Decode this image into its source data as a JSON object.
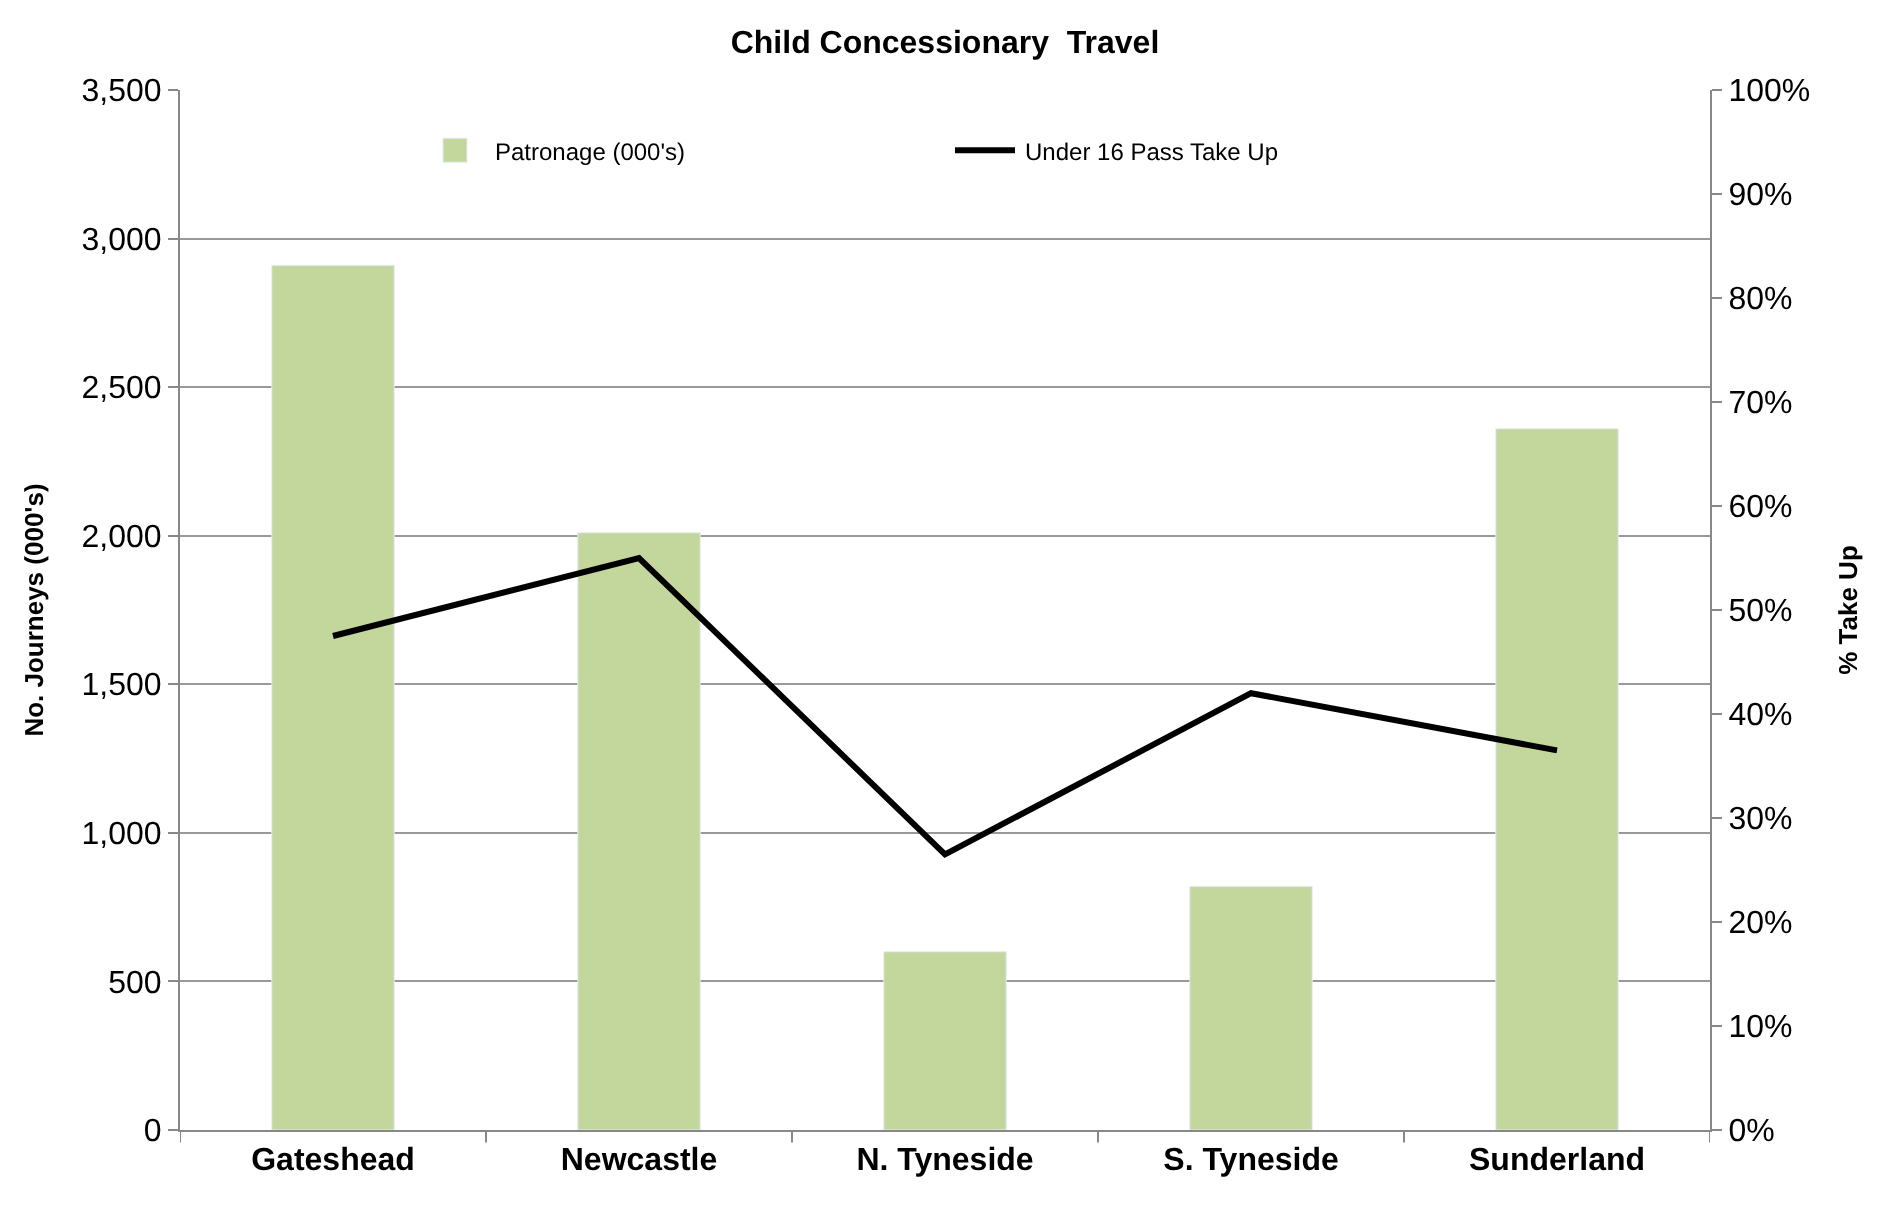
{
  "chart_data": {
    "type": "bar",
    "title": "Child Concessionary  Travel",
    "ylabel": "No. Journeys (000's)",
    "y2label": "% Take Up",
    "categories": [
      "Gateshead",
      "Newcastle",
      "N. Tyneside",
      "S. Tyneside",
      "Sunderland"
    ],
    "series": [
      {
        "name": "Patronage (000's)",
        "color": "#c3d69b",
        "values": [
          2910,
          2010,
          600,
          820,
          2360
        ]
      },
      {
        "name": "Under 16 Pass Take Up",
        "type": "line",
        "axis": "y2",
        "color": "#000000",
        "values": [
          47.5,
          55,
          26.5,
          42,
          36.5
        ]
      }
    ],
    "ylim": [
      0,
      3500
    ],
    "yticks": [
      {
        "value": 0,
        "label": "0"
      },
      {
        "value": 500,
        "label": "500"
      },
      {
        "value": 1000,
        "label": "1,000"
      },
      {
        "value": 1500,
        "label": "1,500"
      },
      {
        "value": 2000,
        "label": "2,000"
      },
      {
        "value": 2500,
        "label": "2,500"
      },
      {
        "value": 3000,
        "label": "3,000"
      },
      {
        "value": 3500,
        "label": "3,500"
      }
    ],
    "y2lim": [
      0,
      100
    ],
    "y2ticks": [
      {
        "value": 0,
        "label": "0%"
      },
      {
        "value": 10,
        "label": "10%"
      },
      {
        "value": 20,
        "label": "20%"
      },
      {
        "value": 30,
        "label": "30%"
      },
      {
        "value": 40,
        "label": "40%"
      },
      {
        "value": 50,
        "label": "50%"
      },
      {
        "value": 60,
        "label": "60%"
      },
      {
        "value": 70,
        "label": "70%"
      },
      {
        "value": 80,
        "label": "80%"
      },
      {
        "value": 90,
        "label": "90%"
      },
      {
        "value": 100,
        "label": "100%"
      }
    ],
    "grid": "y",
    "legend": "top",
    "marker": "none",
    "line_style": "solid"
  }
}
